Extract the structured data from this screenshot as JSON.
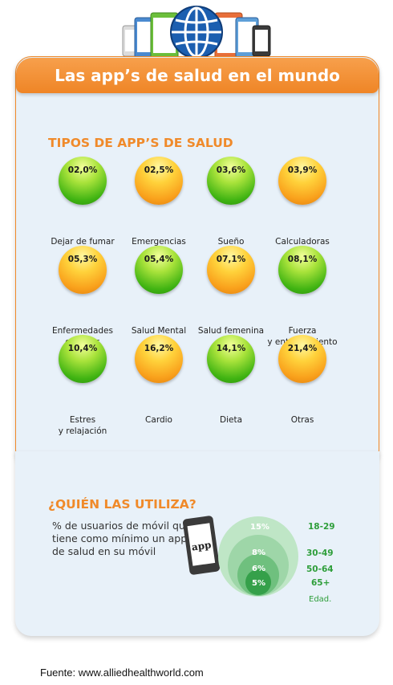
{
  "header": {
    "title": "Las app’s de salud en el mundo",
    "globe_icon": "globe-icon"
  },
  "types": {
    "title": "TIPOS DE APP’S DE SALUD",
    "items": [
      {
        "value": "02,0%",
        "label": "Dejar de fumar",
        "color": "green"
      },
      {
        "value": "02,5%",
        "label": "Emergencias",
        "color": "orange"
      },
      {
        "value": "03,6%",
        "label": "Sueño",
        "color": "green"
      },
      {
        "value": "03,9%",
        "label": "Calculadoras",
        "color": "orange"
      },
      {
        "value": "05,3%",
        "label": "Enfermedades\ncrónicas",
        "color": "orange"
      },
      {
        "value": "05,4%",
        "label": "Salud Mental",
        "color": "green"
      },
      {
        "value": "07,1%",
        "label": "Salud femenina",
        "color": "orange"
      },
      {
        "value": "08,1%",
        "label": "Fuerza\ny entrenamiento",
        "color": "green"
      },
      {
        "value": "10,4%",
        "label": "Estres\ny relajación",
        "color": "green"
      },
      {
        "value": "16,2%",
        "label": "Cardio",
        "color": "orange"
      },
      {
        "value": "14,1%",
        "label": "Dieta",
        "color": "green"
      },
      {
        "value": "21,4%",
        "label": "Otras",
        "color": "orange"
      }
    ]
  },
  "users": {
    "title": "¿QUIÉN LAS UTILIZA?",
    "description": "% de usuarios de móvil que tiene como mínimo un app de salud en su móvil",
    "phone_label": "app",
    "circles": [
      {
        "pct": "15%",
        "age": "18-29"
      },
      {
        "pct": "8%",
        "age": "30-49"
      },
      {
        "pct": "6%",
        "age": "50-64"
      },
      {
        "pct": "5%",
        "age": "65+"
      }
    ],
    "age_caption": "Edad."
  },
  "source": "Fuente: www.alliedhealthworld.com",
  "colors": {
    "accent": "#f08a2a",
    "card_bg": "#e8f1f9",
    "age_green": "#2e9e3a"
  }
}
